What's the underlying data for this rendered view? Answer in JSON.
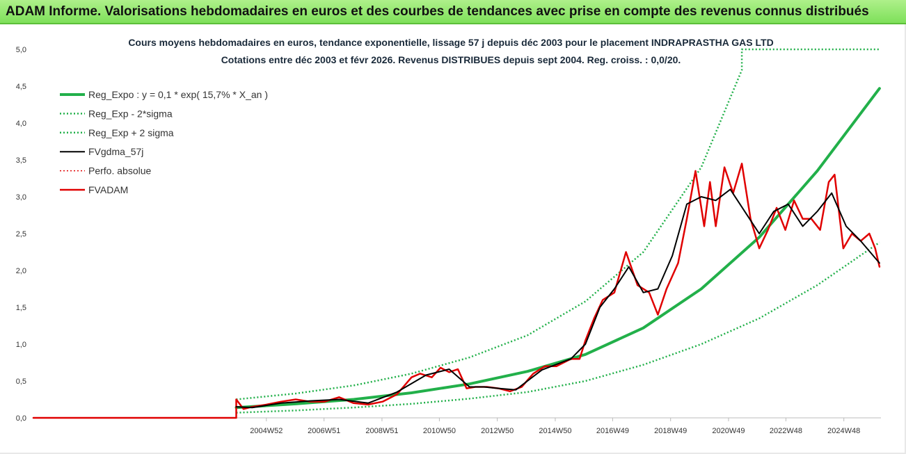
{
  "banner": {
    "title": "ADAM Informe. Valorisations hebdomadaires en euros et des courbes de tendances avec prise en compte des revenus connus distribués"
  },
  "chart_data": {
    "type": "line",
    "title": "Cours moyens hebdomadaires en euros, tendance exponentielle, lissage 57 j depuis déc 2003 pour le placement INDRAPRASTHA GAS LTD",
    "subtitle": "Cotations entre déc 2003 et févr 2026. Revenus DISTRIBUES depuis sept 2004. Reg. croiss. : 0,0/20.",
    "xlabel": "",
    "ylabel": "",
    "ylim": [
      0,
      5
    ],
    "y_ticks": [
      "0,0",
      "0,5",
      "1,0",
      "1,5",
      "2,0",
      "2,5",
      "3,0",
      "3,5",
      "4,0",
      "4,5",
      "5,0"
    ],
    "x_ticks": [
      {
        "label": "2004W52",
        "x": 2004.99
      },
      {
        "label": "2006W51",
        "x": 2006.98
      },
      {
        "label": "2008W51",
        "x": 2008.98
      },
      {
        "label": "2010W50",
        "x": 2010.96
      },
      {
        "label": "2012W50",
        "x": 2012.96
      },
      {
        "label": "2014W50",
        "x": 2014.96
      },
      {
        "label": "2016W49",
        "x": 2016.94
      },
      {
        "label": "2018W49",
        "x": 2018.94
      },
      {
        "label": "2020W49",
        "x": 2020.94
      },
      {
        "label": "2022W48",
        "x": 2022.92
      },
      {
        "label": "2024W48",
        "x": 2024.92
      }
    ],
    "xlim": [
      1996.95,
      2026.2
    ],
    "grid": false,
    "legend_position": "top-left",
    "series": [
      {
        "name": "Reg_Expo : y = 0,1 * exp( 15,7% *  X_an )",
        "color": "#22b04a",
        "style": "solid",
        "x": [
          2003.95,
          2006,
          2008,
          2010,
          2012,
          2014,
          2016,
          2018,
          2020,
          2022,
          2024,
          2026.15
        ],
        "y": [
          0.14,
          0.19,
          0.25,
          0.34,
          0.46,
          0.63,
          0.86,
          1.22,
          1.75,
          2.45,
          3.35,
          4.47
        ]
      },
      {
        "name": "Reg_Exp - 2*sigma",
        "color": "#22b04a",
        "style": "dotted",
        "x": [
          2003.95,
          2006,
          2008,
          2010,
          2012,
          2014,
          2016,
          2018,
          2020,
          2022,
          2024,
          2026.15
        ],
        "y": [
          0.07,
          0.1,
          0.14,
          0.19,
          0.26,
          0.35,
          0.5,
          0.72,
          1.0,
          1.35,
          1.8,
          2.38
        ]
      },
      {
        "name": "Reg_Exp + 2 sigma",
        "color": "#22b04a",
        "style": "dotted",
        "x": [
          2003.95,
          2006,
          2008,
          2010,
          2012,
          2014,
          2016,
          2018,
          2020,
          2021.4,
          2021.4,
          2026.15
        ],
        "y": [
          0.25,
          0.33,
          0.44,
          0.6,
          0.82,
          1.12,
          1.58,
          2.25,
          3.4,
          4.72,
          5.0,
          5.0
        ]
      },
      {
        "name": "FVgdma_57j",
        "color": "#000000",
        "style": "solid",
        "x": [
          2003.95,
          2004.5,
          2005.5,
          2006.5,
          2007.5,
          2008.5,
          2009.5,
          2010.5,
          2011.3,
          2012,
          2012.5,
          2013,
          2013.6,
          2014.5,
          2015.5,
          2016,
          2016.5,
          2017,
          2017.5,
          2018,
          2018.5,
          2019,
          2019.5,
          2020,
          2020.5,
          2021,
          2021.5,
          2022,
          2022.5,
          2023,
          2023.5,
          2024,
          2024.5,
          2025,
          2025.5,
          2026.15
        ],
        "y": [
          0.15,
          0.14,
          0.2,
          0.23,
          0.25,
          0.2,
          0.35,
          0.58,
          0.66,
          0.42,
          0.42,
          0.4,
          0.38,
          0.65,
          0.8,
          1.0,
          1.5,
          1.75,
          2.05,
          1.7,
          1.75,
          2.2,
          2.9,
          3.0,
          2.95,
          3.1,
          2.8,
          2.5,
          2.8,
          2.9,
          2.6,
          2.8,
          3.05,
          2.6,
          2.4,
          2.1
        ]
      },
      {
        "name": "Perfo. absolue",
        "color": "#e00000",
        "style": "dotted",
        "x": [],
        "y": []
      },
      {
        "name": "FVADAM",
        "color": "#e00000",
        "style": "solid",
        "x": [
          1996.95,
          2003.95,
          2003.95,
          2004.2,
          2004.5,
          2005,
          2005.5,
          2006,
          2006.5,
          2007,
          2007.5,
          2008,
          2008.5,
          2009,
          2009.5,
          2010,
          2010.3,
          2010.7,
          2011,
          2011.3,
          2011.6,
          2011.9,
          2012.2,
          2012.6,
          2013,
          2013.4,
          2013.8,
          2014.2,
          2014.6,
          2015,
          2015.5,
          2015.8,
          2016,
          2016.3,
          2016.6,
          2017,
          2017.4,
          2017.8,
          2018.2,
          2018.5,
          2018.8,
          2019.2,
          2019.5,
          2019.8,
          2020.1,
          2020.3,
          2020.5,
          2020.8,
          2021.1,
          2021.4,
          2021.7,
          2022.0,
          2022.3,
          2022.6,
          2022.9,
          2023.2,
          2023.5,
          2023.8,
          2024.1,
          2024.4,
          2024.6,
          2024.9,
          2025.2,
          2025.5,
          2025.8,
          2026.0,
          2026.15
        ],
        "y": [
          0,
          0,
          0.25,
          0.12,
          0.15,
          0.18,
          0.22,
          0.25,
          0.22,
          0.22,
          0.28,
          0.2,
          0.18,
          0.22,
          0.32,
          0.55,
          0.6,
          0.55,
          0.68,
          0.62,
          0.66,
          0.4,
          0.42,
          0.42,
          0.4,
          0.36,
          0.42,
          0.6,
          0.7,
          0.7,
          0.8,
          0.8,
          1.05,
          1.35,
          1.6,
          1.7,
          2.25,
          1.8,
          1.7,
          1.4,
          1.75,
          2.1,
          2.7,
          3.35,
          2.6,
          3.2,
          2.6,
          3.4,
          3.05,
          3.45,
          2.7,
          2.3,
          2.55,
          2.85,
          2.55,
          2.95,
          2.7,
          2.7,
          2.55,
          3.2,
          3.3,
          2.3,
          2.5,
          2.4,
          2.5,
          2.3,
          2.05
        ]
      }
    ]
  }
}
